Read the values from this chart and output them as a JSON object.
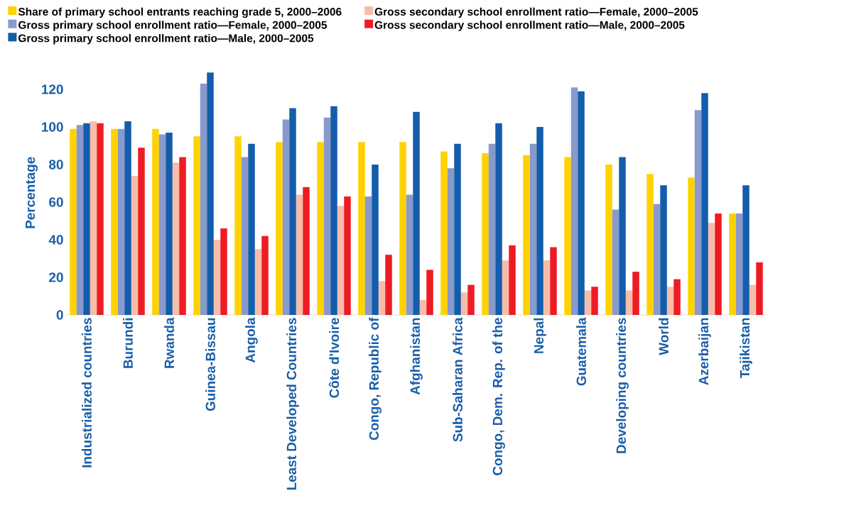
{
  "chart_data": {
    "type": "bar",
    "ylabel": "Percentage",
    "categories": [
      "Industrialized countries",
      "Burundi",
      "Rwanda",
      "Guinea-Bissau",
      "Angola",
      "Least Developed Countries",
      "Côte d'Ivoire",
      "Congo, Republic of",
      "Afghanistan",
      "Sub-Saharan  Africa",
      "Congo, Dem. Rep. of the",
      "Nepal",
      "Guatemala",
      "Developing countries",
      "World",
      "Azerbaijan",
      "Tajikistan"
    ],
    "series": [
      {
        "name": "Share of primary school entrants reaching grade 5, 2000–2006",
        "color": "#ffd200",
        "values": [
          99,
          99,
          99,
          95,
          95,
          92,
          92,
          92,
          92,
          87,
          86,
          85,
          84,
          80,
          75,
          73,
          54
        ]
      },
      {
        "name": "Gross primary school enrollment ratio—Female, 2000–2005",
        "color": "#8899cc",
        "values": [
          101,
          99,
          96,
          123,
          84,
          104,
          105,
          63,
          64,
          78,
          91,
          91,
          121,
          56,
          59,
          109,
          54
        ]
      },
      {
        "name": "Gross primary school enrollment ratio—Male, 2000–2005",
        "color": "#135dab",
        "values": [
          102,
          103,
          97,
          129,
          91,
          110,
          111,
          80,
          108,
          91,
          102,
          100,
          119,
          84,
          69,
          118,
          69
        ]
      },
      {
        "name": "Gross secondary school enrollment ratio—Female, 2000–2005",
        "color": "#f8bda8",
        "values": [
          103,
          74,
          81,
          40,
          35,
          64,
          58,
          18,
          8,
          12,
          29,
          29,
          13,
          13,
          15,
          49,
          16
        ]
      },
      {
        "name": "Gross secondary school enrollment ratio—Male, 2000–2005",
        "color": "#ed1c24",
        "values": [
          102,
          89,
          84,
          46,
          42,
          68,
          63,
          32,
          24,
          16,
          37,
          36,
          15,
          23,
          19,
          54,
          28
        ]
      }
    ],
    "ylim": [
      0,
      130
    ],
    "yticks": [
      0,
      20,
      40,
      60,
      80,
      100,
      120
    ],
    "legend": "top",
    "grid": false
  }
}
